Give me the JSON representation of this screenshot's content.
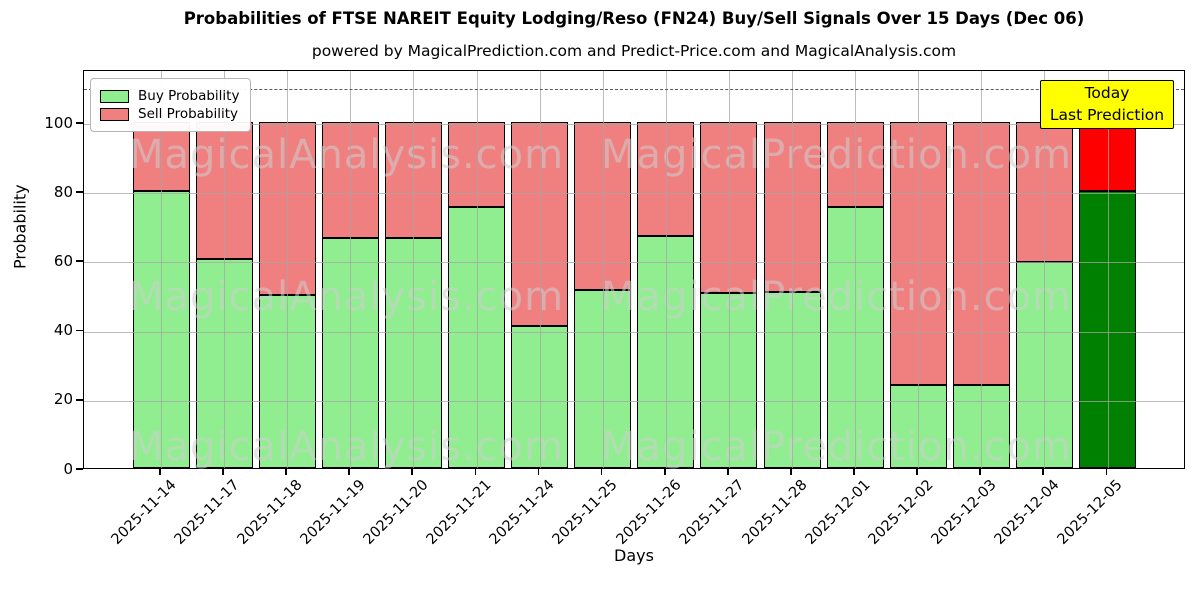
{
  "title": "Probabilities of FTSE NAREIT Equity Lodging/Reso (FN24) Buy/Sell Signals Over 15 Days (Dec 06)",
  "subtitle": "powered by MagicalPrediction.com and Predict-Price.com and MagicalAnalysis.com",
  "legend": {
    "items": [
      {
        "label": "Buy Probability",
        "color": "#90ee90"
      },
      {
        "label": "Sell Probability",
        "color": "#f08080"
      }
    ]
  },
  "annotation": {
    "line1": "Today",
    "line2": "Last Prediction",
    "bg_color": "#ffff00"
  },
  "axes": {
    "xlabel": "Days",
    "ylabel": "Probability",
    "yticks": [
      0,
      20,
      40,
      60,
      80,
      100
    ],
    "ylim": [
      0,
      115
    ],
    "dashed_guide_y": 110
  },
  "watermarks": {
    "left_text": "MagicalAnalysis.com",
    "right_text": "MagicalPrediction.com"
  },
  "colors": {
    "buy": "#90ee90",
    "sell": "#f08080",
    "today_buy": "#008000",
    "today_sell": "#ff0000",
    "grid": "#b0b0b0",
    "dashed_guide": "#5a5a5a",
    "bar_edge": "#000000"
  },
  "chart_data": {
    "type": "bar",
    "stacked": true,
    "title": "Probabilities of FTSE NAREIT Equity Lodging/Reso (FN24) Buy/Sell Signals Over 15 Days (Dec 06)",
    "xlabel": "Days",
    "ylabel": "Probability",
    "ylim": [
      0,
      115
    ],
    "grid": true,
    "legend_position": "upper left",
    "dashed_guide_y": 110,
    "categories": [
      "2025-11-14",
      "2025-11-17",
      "2025-11-18",
      "2025-11-19",
      "2025-11-20",
      "2025-11-21",
      "2025-11-24",
      "2025-11-25",
      "2025-11-26",
      "2025-11-27",
      "2025-11-28",
      "2025-12-01",
      "2025-12-02",
      "2025-12-03",
      "2025-12-04",
      "2025-12-05"
    ],
    "series": [
      {
        "name": "Buy Probability",
        "color": "#90ee90",
        "values": [
          80,
          60.5,
          50,
          66.5,
          66.5,
          75.5,
          41,
          51.5,
          67,
          50.5,
          51,
          75.5,
          24,
          24,
          59.5,
          80
        ]
      },
      {
        "name": "Sell Probability",
        "color": "#f08080",
        "values": [
          20,
          39.5,
          50,
          33.5,
          33.5,
          24.5,
          59,
          48.5,
          33,
          49.5,
          49,
          24.5,
          76,
          76,
          40.5,
          20
        ]
      }
    ],
    "today_bar": {
      "category": "2025-12-05",
      "buy_color": "#008000",
      "sell_color": "#ff0000"
    }
  }
}
